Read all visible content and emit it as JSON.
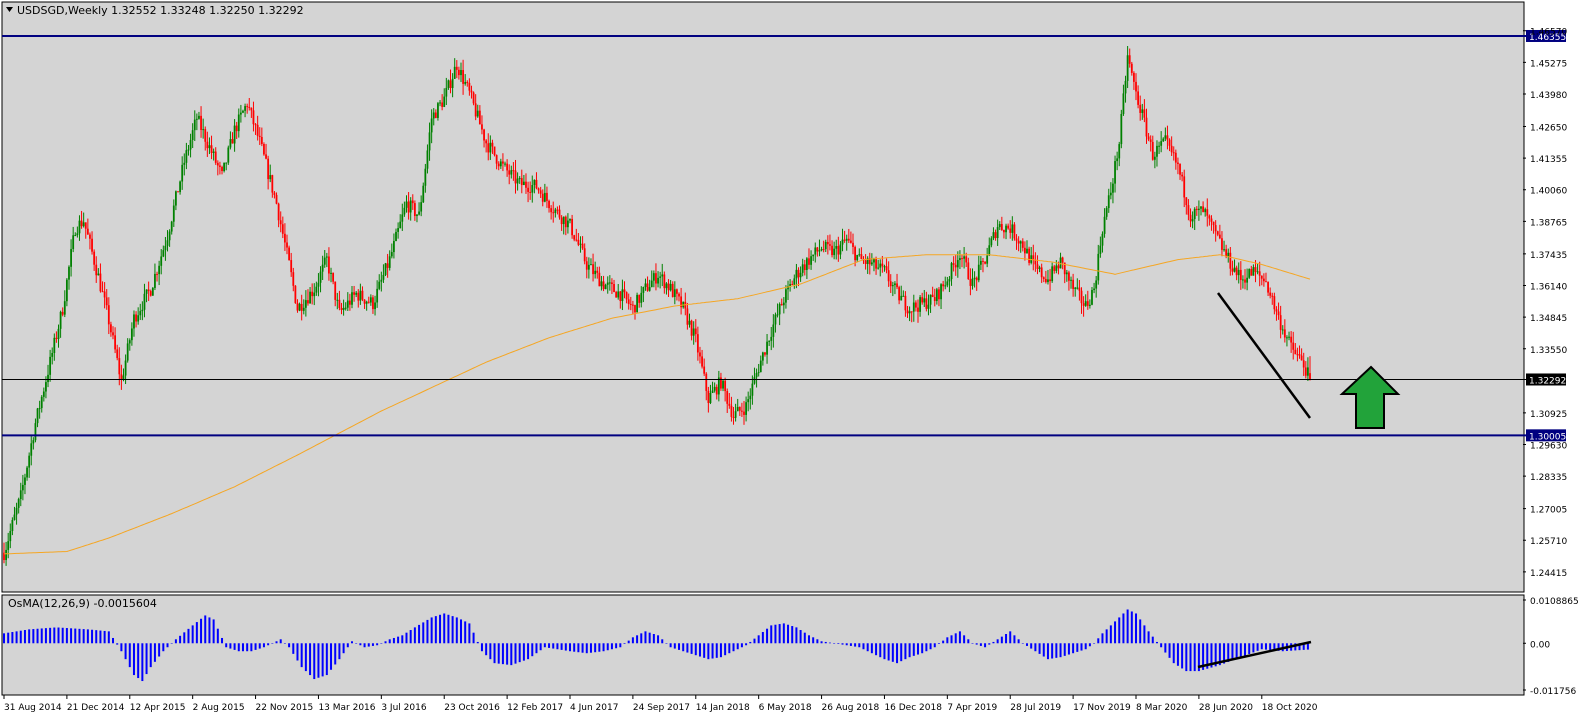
{
  "colors": {
    "background": "#d4d4d4",
    "up_candle": "#008000",
    "down_candle": "#ff0000",
    "ma_line": "#f5a623",
    "level_line": "#000080",
    "osma_bar": "#0000ff",
    "arrow_fill": "#22a33a",
    "grid_text": "#000000"
  },
  "header": {
    "symbol_label": "USDSGD,Weekly  1.32552 1.33248 1.32250 1.32292",
    "dropdown_icon": "triangle-down-icon"
  },
  "chart_data": [
    {
      "type": "candlestick",
      "title": "USDSGD,Weekly",
      "ohlc_last": {
        "open": 1.32552,
        "high": 1.33248,
        "low": 1.3225,
        "close": 1.32292
      },
      "ylim": [
        1.2441,
        1.466
      ],
      "yticks": [
        "1.46570",
        "1.45275",
        "1.43980",
        "1.42650",
        "1.41355",
        "1.40060",
        "1.38765",
        "1.37435",
        "1.36140",
        "1.34845",
        "1.33550",
        "1.30925",
        "1.29630",
        "1.28335",
        "1.27005",
        "1.25710",
        "1.24415"
      ],
      "price_tags": [
        {
          "label": "1.46355",
          "value": 1.46355,
          "style": "level"
        },
        {
          "label": "1.32292",
          "value": 1.32292,
          "style": "current"
        },
        {
          "label": "1.30005",
          "value": 1.30005,
          "style": "level"
        }
      ],
      "x_tick_labels": [
        "31 Aug 2014",
        "21 Dec 2014",
        "12 Apr 2015",
        "2 Aug 2015",
        "22 Nov 2015",
        "13 Mar 2016",
        "3 Jul 2016",
        "23 Oct 2016",
        "12 Feb 2017",
        "4 Jun 2017",
        "24 Sep 2017",
        "14 Jan 2018",
        "6 May 2018",
        "26 Aug 2018",
        "16 Dec 2018",
        "7 Apr 2019",
        "28 Jul 2019",
        "17 Nov 2019",
        "8 Mar 2020",
        "28 Jun 2020",
        "18 Oct 2020"
      ],
      "price_path_anchors": [
        [
          0,
          1.252
        ],
        [
          8,
          1.275
        ],
        [
          15,
          1.305
        ],
        [
          22,
          1.33
        ],
        [
          28,
          1.352
        ],
        [
          34,
          1.385
        ],
        [
          38,
          1.388
        ],
        [
          45,
          1.365
        ],
        [
          50,
          1.347
        ],
        [
          56,
          1.322
        ],
        [
          62,
          1.348
        ],
        [
          70,
          1.36
        ],
        [
          78,
          1.382
        ],
        [
          86,
          1.412
        ],
        [
          92,
          1.43
        ],
        [
          98,
          1.418
        ],
        [
          104,
          1.406
        ],
        [
          110,
          1.425
        ],
        [
          116,
          1.436
        ],
        [
          122,
          1.42
        ],
        [
          130,
          1.395
        ],
        [
          136,
          1.37
        ],
        [
          140,
          1.352
        ],
        [
          148,
          1.36
        ],
        [
          154,
          1.372
        ],
        [
          160,
          1.35
        ],
        [
          168,
          1.358
        ],
        [
          176,
          1.354
        ],
        [
          184,
          1.372
        ],
        [
          192,
          1.395
        ],
        [
          198,
          1.39
        ],
        [
          204,
          1.43
        ],
        [
          210,
          1.438
        ],
        [
          216,
          1.452
        ],
        [
          222,
          1.44
        ],
        [
          230,
          1.42
        ],
        [
          238,
          1.41
        ],
        [
          246,
          1.403
        ],
        [
          254,
          1.402
        ],
        [
          262,
          1.393
        ],
        [
          270,
          1.386
        ],
        [
          278,
          1.37
        ],
        [
          286,
          1.362
        ],
        [
          294,
          1.358
        ],
        [
          300,
          1.352
        ],
        [
          306,
          1.36
        ],
        [
          312,
          1.366
        ],
        [
          318,
          1.36
        ],
        [
          324,
          1.352
        ],
        [
          330,
          1.339
        ],
        [
          336,
          1.315
        ],
        [
          342,
          1.322
        ],
        [
          348,
          1.308
        ],
        [
          354,
          1.312
        ],
        [
          360,
          1.328
        ],
        [
          366,
          1.343
        ],
        [
          372,
          1.356
        ],
        [
          378,
          1.366
        ],
        [
          384,
          1.372
        ],
        [
          390,
          1.377
        ],
        [
          396,
          1.375
        ],
        [
          402,
          1.38
        ],
        [
          408,
          1.372
        ],
        [
          414,
          1.37
        ],
        [
          420,
          1.367
        ],
        [
          426,
          1.358
        ],
        [
          432,
          1.352
        ],
        [
          438,
          1.354
        ],
        [
          444,
          1.356
        ],
        [
          450,
          1.364
        ],
        [
          456,
          1.375
        ],
        [
          462,
          1.362
        ],
        [
          468,
          1.372
        ],
        [
          474,
          1.386
        ],
        [
          480,
          1.385
        ],
        [
          486,
          1.378
        ],
        [
          492,
          1.368
        ],
        [
          498,
          1.364
        ],
        [
          504,
          1.371
        ],
        [
          510,
          1.36
        ],
        [
          516,
          1.353
        ],
        [
          520,
          1.36
        ],
        [
          524,
          1.385
        ],
        [
          528,
          1.4
        ],
        [
          532,
          1.42
        ],
        [
          536,
          1.455
        ],
        [
          540,
          1.44
        ],
        [
          544,
          1.428
        ],
        [
          548,
          1.415
        ],
        [
          554,
          1.42
        ],
        [
          560,
          1.41
        ],
        [
          566,
          1.39
        ],
        [
          572,
          1.392
        ],
        [
          578,
          1.382
        ],
        [
          584,
          1.372
        ],
        [
          590,
          1.364
        ],
        [
          596,
          1.367
        ],
        [
          602,
          1.363
        ],
        [
          608,
          1.348
        ],
        [
          614,
          1.336
        ],
        [
          620,
          1.329
        ],
        [
          623,
          1.3229
        ]
      ],
      "osma": {
        "label": "OsMA(12,26,9) -0.0015604",
        "ylim": [
          -0.011756,
          0.0108865
        ],
        "yticks": [
          "0.0108865",
          "0.00",
          "-0.011756"
        ],
        "value_anchors": [
          [
            0,
            0.0025
          ],
          [
            12,
            0.0035
          ],
          [
            25,
            0.004
          ],
          [
            40,
            0.0035
          ],
          [
            50,
            0.003
          ],
          [
            56,
            -0.002
          ],
          [
            62,
            -0.008
          ],
          [
            66,
            -0.0095
          ],
          [
            70,
            -0.006
          ],
          [
            76,
            -0.002
          ],
          [
            82,
            0.001
          ],
          [
            90,
            0.0045
          ],
          [
            96,
            0.007
          ],
          [
            100,
            0.006
          ],
          [
            106,
            -0.001
          ],
          [
            112,
            -0.002
          ],
          [
            118,
            -0.002
          ],
          [
            124,
            -0.001
          ],
          [
            132,
            0.001
          ],
          [
            136,
            -0.001
          ],
          [
            142,
            -0.006
          ],
          [
            148,
            -0.009
          ],
          [
            154,
            -0.008
          ],
          [
            160,
            -0.004
          ],
          [
            166,
            0.0005
          ],
          [
            172,
            -0.001
          ],
          [
            178,
            -0.0005
          ],
          [
            184,
            0.001
          ],
          [
            190,
            0.002
          ],
          [
            196,
            0.004
          ],
          [
            204,
            0.0065
          ],
          [
            210,
            0.0075
          ],
          [
            216,
            0.0065
          ],
          [
            222,
            0.005
          ],
          [
            228,
            -0.002
          ],
          [
            234,
            -0.005
          ],
          [
            242,
            -0.0055
          ],
          [
            250,
            -0.004
          ],
          [
            258,
            -0.001
          ],
          [
            264,
            -0.0015
          ],
          [
            270,
            -0.002
          ],
          [
            278,
            -0.0025
          ],
          [
            286,
            -0.002
          ],
          [
            294,
            -0.001
          ],
          [
            300,
            0.0015
          ],
          [
            306,
            0.003
          ],
          [
            312,
            0.002
          ],
          [
            318,
            -0.001
          ],
          [
            324,
            -0.002
          ],
          [
            330,
            -0.003
          ],
          [
            336,
            -0.004
          ],
          [
            342,
            -0.0035
          ],
          [
            348,
            -0.002
          ],
          [
            354,
            -0.0005
          ],
          [
            360,
            0.002
          ],
          [
            366,
            0.0045
          ],
          [
            372,
            0.005
          ],
          [
            378,
            0.004
          ],
          [
            384,
            0.002
          ],
          [
            390,
            0.0005
          ],
          [
            396,
            0.0
          ],
          [
            402,
            -0.0005
          ],
          [
            408,
            -0.001
          ],
          [
            414,
            -0.0025
          ],
          [
            420,
            -0.004
          ],
          [
            426,
            -0.005
          ],
          [
            432,
            -0.0035
          ],
          [
            438,
            -0.0025
          ],
          [
            444,
            -0.001
          ],
          [
            450,
            0.0015
          ],
          [
            456,
            0.003
          ],
          [
            462,
            0.0
          ],
          [
            468,
            -0.001
          ],
          [
            474,
            0.001
          ],
          [
            480,
            0.003
          ],
          [
            486,
            0.0
          ],
          [
            492,
            -0.002
          ],
          [
            498,
            -0.004
          ],
          [
            504,
            -0.0035
          ],
          [
            510,
            -0.0025
          ],
          [
            516,
            -0.0015
          ],
          [
            520,
            0.0
          ],
          [
            524,
            0.0025
          ],
          [
            528,
            0.0045
          ],
          [
            532,
            0.0065
          ],
          [
            536,
            0.0085
          ],
          [
            540,
            0.0075
          ],
          [
            546,
            0.003
          ],
          [
            552,
            -0.001
          ],
          [
            558,
            -0.005
          ],
          [
            564,
            -0.007
          ],
          [
            570,
            -0.007
          ],
          [
            580,
            -0.0055
          ],
          [
            590,
            -0.0035
          ],
          [
            600,
            -0.0015
          ],
          [
            610,
            -0.002
          ],
          [
            623,
            -0.0015604
          ]
        ]
      },
      "ma_path_anchors": [
        [
          0,
          1.2515
        ],
        [
          30,
          1.2525
        ],
        [
          50,
          1.258
        ],
        [
          80,
          1.268
        ],
        [
          110,
          1.279
        ],
        [
          140,
          1.292
        ],
        [
          160,
          1.301
        ],
        [
          180,
          1.31
        ],
        [
          200,
          1.318
        ],
        [
          230,
          1.33
        ],
        [
          260,
          1.34
        ],
        [
          290,
          1.348
        ],
        [
          320,
          1.353
        ],
        [
          350,
          1.356
        ],
        [
          380,
          1.362
        ],
        [
          410,
          1.372
        ],
        [
          440,
          1.374
        ],
        [
          470,
          1.374
        ],
        [
          500,
          1.371
        ],
        [
          530,
          1.366
        ],
        [
          560,
          1.372
        ],
        [
          580,
          1.374
        ],
        [
          600,
          1.37
        ],
        [
          623,
          1.364
        ]
      ]
    }
  ]
}
